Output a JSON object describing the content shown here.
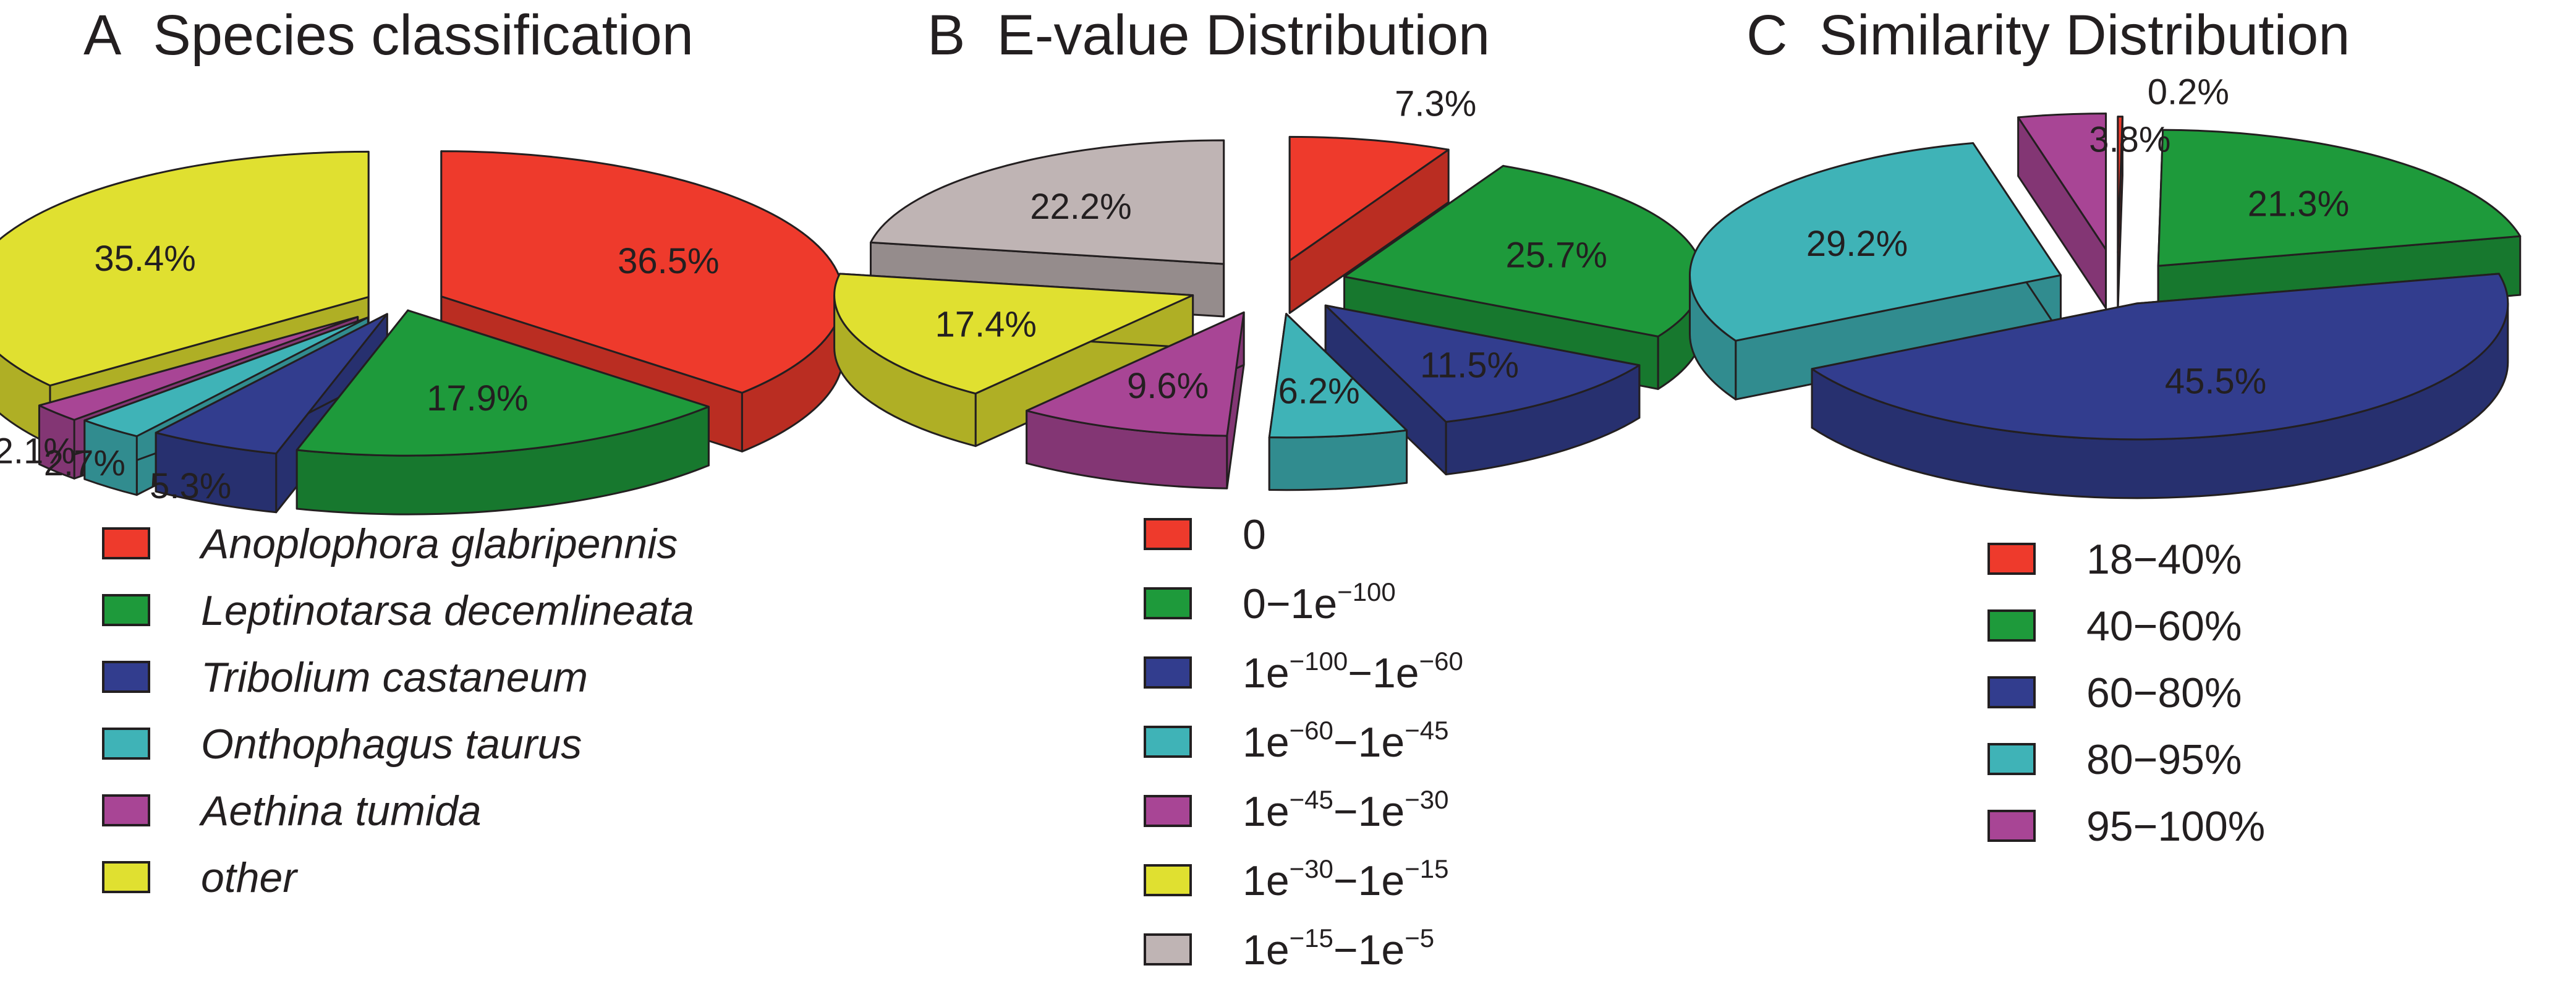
{
  "chart_data": [
    {
      "type": "pie",
      "panel": "A",
      "title": "Species classification",
      "legend_italic": true,
      "categories": [
        "Anoplophora glabripennis",
        "Leptinotarsa decemlineata",
        "Tribolium castaneum",
        "Onthophagus taurus",
        "Aethina tumida",
        "other"
      ],
      "values": [
        36.5,
        17.9,
        5.3,
        2.7,
        2.1,
        35.4
      ],
      "labels": [
        "36.5%",
        "17.9%",
        "5.3%",
        "2.7%",
        "2.1%",
        "35.4%"
      ],
      "colors": [
        "#ee3a2c",
        "#1e9a3b",
        "#323d8e",
        "#3fb3b7",
        "#a84595",
        "#e0e030"
      ]
    },
    {
      "type": "pie",
      "panel": "B",
      "title": "E-value Distribution",
      "legend_italic": false,
      "categories": [
        "0",
        "0−1e−100",
        "1e−100−1e−60",
        "1e−60−1e−45",
        "1e−45−1e−30",
        "1e−30−1e−15",
        "1e−15−1e−5"
      ],
      "legend_parts": [
        [
          [
            "0",
            ""
          ]
        ],
        [
          [
            "0−1e",
            "−100"
          ]
        ],
        [
          [
            "1e",
            "−100"
          ],
          [
            "−1e",
            "−60"
          ]
        ],
        [
          [
            "1e",
            "−60"
          ],
          [
            "−1e",
            "−45"
          ]
        ],
        [
          [
            "1e",
            "−45"
          ],
          [
            "−1e",
            "−30"
          ]
        ],
        [
          [
            "1e",
            "−30"
          ],
          [
            "−1e",
            "−15"
          ]
        ],
        [
          [
            "1e",
            "−15"
          ],
          [
            "−1e",
            "−5"
          ]
        ]
      ],
      "values": [
        7.3,
        25.7,
        11.5,
        6.2,
        9.6,
        17.4,
        22.2
      ],
      "labels": [
        "7.3%",
        "25.7%",
        "11.5%",
        "6.2%",
        "9.6%",
        "17.4%",
        "22.2%"
      ],
      "colors": [
        "#ee3a2c",
        "#1e9a3b",
        "#323d8e",
        "#3fb3b7",
        "#a84595",
        "#e0e030",
        "#bfb4b4"
      ]
    },
    {
      "type": "pie",
      "panel": "C",
      "title": "Similarity Distribution",
      "legend_italic": false,
      "categories": [
        "18−40%",
        "40−60%",
        "60−80%",
        "80−95%",
        "95−100%"
      ],
      "values": [
        0.2,
        21.3,
        45.5,
        29.2,
        3.8
      ],
      "labels": [
        "0.2%",
        "21.3%",
        "45.5%",
        "29.2%",
        "3.8%"
      ],
      "colors": [
        "#ee3a2c",
        "#1e9a3b",
        "#323d8e",
        "#3fb3b7",
        "#a84595"
      ]
    }
  ]
}
